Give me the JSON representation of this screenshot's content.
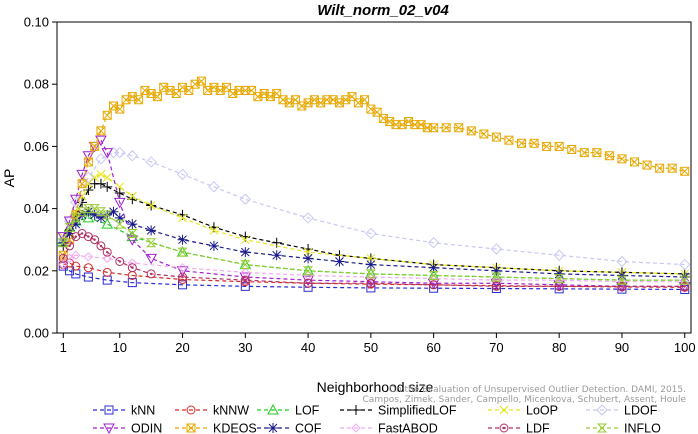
{
  "chart_data": {
    "type": "line",
    "title": "Wilt_norm_02_v04",
    "xlabel": "Neighborhood size",
    "ylabel": "AP",
    "xlim": [
      0,
      101
    ],
    "ylim": [
      0.0,
      0.1
    ],
    "x_ticks": [
      1,
      10,
      20,
      30,
      40,
      50,
      60,
      70,
      80,
      90,
      100
    ],
    "y_ticks": [
      0.0,
      0.02,
      0.04,
      0.06,
      0.08,
      0.1
    ],
    "y_tick_labels": [
      "0.00",
      "0.02",
      "0.04",
      "0.06",
      "0.08",
      "0.10"
    ],
    "grid": false,
    "legend_position": "bottom",
    "watermark": [
      "Campos, Zimek, Sander, Campello, Micenkova, Schubert, Assent, Houle",
      "On the Evaluation of Unsupervised Outlier Detection. DAMI, 2015."
    ],
    "series": [
      {
        "name": "kNN",
        "color": "#2b2bd6",
        "marker": "square",
        "x": [
          1,
          2,
          3,
          5,
          8,
          12,
          20,
          30,
          40,
          50,
          60,
          70,
          80,
          90,
          100
        ],
        "values": [
          0.0215,
          0.02,
          0.019,
          0.018,
          0.017,
          0.0162,
          0.0155,
          0.015,
          0.0147,
          0.0145,
          0.0144,
          0.0143,
          0.0142,
          0.0141,
          0.014
        ]
      },
      {
        "name": "kNNW",
        "color": "#d62b2b",
        "marker": "circle",
        "x": [
          1,
          2,
          3,
          5,
          8,
          12,
          20,
          30,
          40,
          50,
          60,
          70,
          80,
          90,
          100
        ],
        "values": [
          0.022,
          0.0225,
          0.0215,
          0.021,
          0.0195,
          0.0185,
          0.0172,
          0.0165,
          0.016,
          0.0157,
          0.0155,
          0.0152,
          0.015,
          0.0148,
          0.0147
        ]
      },
      {
        "name": "LOF",
        "color": "#22cc22",
        "marker": "triangle-up",
        "x": [
          1,
          2,
          3,
          5,
          8,
          12,
          20,
          30,
          40,
          50,
          60,
          70,
          80,
          90,
          100
        ],
        "values": [
          0.03,
          0.034,
          0.036,
          0.037,
          0.035,
          0.031,
          0.026,
          0.022,
          0.02,
          0.019,
          0.0185,
          0.018,
          0.0175,
          0.017,
          0.017
        ]
      },
      {
        "name": "SimplifiedLOF",
        "color": "#000000",
        "marker": "plus",
        "x": [
          1,
          2,
          3,
          4,
          5,
          6,
          7,
          8,
          10,
          12,
          15,
          20,
          25,
          30,
          35,
          40,
          45,
          50,
          60,
          70,
          80,
          90,
          100
        ],
        "values": [
          0.028,
          0.033,
          0.038,
          0.042,
          0.046,
          0.048,
          0.048,
          0.047,
          0.045,
          0.043,
          0.041,
          0.038,
          0.034,
          0.031,
          0.029,
          0.027,
          0.025,
          0.024,
          0.022,
          0.021,
          0.02,
          0.0195,
          0.019
        ]
      },
      {
        "name": "LoOP",
        "color": "#e6e619",
        "marker": "x",
        "x": [
          1,
          2,
          3,
          4,
          5,
          6,
          7,
          8,
          10,
          12,
          15,
          20,
          25,
          30,
          40,
          50,
          60,
          70,
          80,
          90,
          100
        ],
        "values": [
          0.031,
          0.034,
          0.039,
          0.044,
          0.048,
          0.05,
          0.051,
          0.05,
          0.047,
          0.044,
          0.041,
          0.037,
          0.033,
          0.03,
          0.026,
          0.024,
          0.022,
          0.021,
          0.02,
          0.0195,
          0.019
        ]
      },
      {
        "name": "LDOF",
        "color": "#c8c8f4",
        "marker": "diamond",
        "x": [
          1,
          2,
          3,
          5,
          7,
          9,
          10,
          12,
          15,
          20,
          25,
          30,
          40,
          50,
          60,
          70,
          80,
          90,
          100
        ],
        "values": [
          0.03,
          0.036,
          0.042,
          0.05,
          0.056,
          0.058,
          0.058,
          0.057,
          0.055,
          0.051,
          0.047,
          0.043,
          0.037,
          0.032,
          0.029,
          0.027,
          0.025,
          0.023,
          0.022
        ]
      },
      {
        "name": "ODIN",
        "color": "#a020d0",
        "marker": "triangle-down",
        "x": [
          1,
          2,
          3,
          4,
          5,
          6,
          7,
          8,
          10,
          12,
          15,
          20,
          30,
          40,
          50,
          60,
          70,
          80,
          90,
          100
        ],
        "values": [
          0.031,
          0.036,
          0.043,
          0.051,
          0.057,
          0.06,
          0.062,
          0.058,
          0.042,
          0.03,
          0.024,
          0.02,
          0.018,
          0.017,
          0.0165,
          0.016,
          0.016,
          0.0155,
          0.015,
          0.015
        ]
      },
      {
        "name": "KDEOS",
        "color": "#e8a800",
        "marker": "square-x",
        "x": [
          1,
          2,
          3,
          4,
          5,
          6,
          7,
          8,
          9,
          10,
          11,
          12,
          13,
          14,
          15,
          16,
          17,
          18,
          19,
          20,
          21,
          22,
          23,
          24,
          25,
          26,
          27,
          28,
          29,
          30,
          31,
          32,
          33,
          34,
          35,
          36,
          37,
          38,
          39,
          40,
          41,
          42,
          43,
          44,
          45,
          46,
          47,
          48,
          49,
          50,
          51,
          52,
          53,
          54,
          55,
          56,
          57,
          58,
          59,
          60,
          62,
          64,
          66,
          68,
          70,
          72,
          74,
          76,
          78,
          80,
          82,
          84,
          86,
          88,
          90,
          92,
          94,
          96,
          98,
          100
        ],
        "values": [
          0.025,
          0.03,
          0.038,
          0.048,
          0.055,
          0.06,
          0.065,
          0.07,
          0.073,
          0.072,
          0.075,
          0.076,
          0.075,
          0.078,
          0.077,
          0.076,
          0.079,
          0.078,
          0.077,
          0.079,
          0.078,
          0.08,
          0.081,
          0.078,
          0.079,
          0.078,
          0.079,
          0.077,
          0.078,
          0.078,
          0.078,
          0.076,
          0.077,
          0.076,
          0.077,
          0.075,
          0.074,
          0.075,
          0.073,
          0.074,
          0.075,
          0.074,
          0.075,
          0.075,
          0.074,
          0.075,
          0.076,
          0.074,
          0.075,
          0.072,
          0.071,
          0.069,
          0.068,
          0.067,
          0.067,
          0.068,
          0.067,
          0.067,
          0.066,
          0.066,
          0.066,
          0.066,
          0.065,
          0.064,
          0.063,
          0.062,
          0.061,
          0.061,
          0.06,
          0.06,
          0.059,
          0.058,
          0.058,
          0.057,
          0.056,
          0.055,
          0.054,
          0.053,
          0.053,
          0.052
        ]
      },
      {
        "name": "COF",
        "color": "#1a1a8c",
        "marker": "asterisk",
        "x": [
          1,
          2,
          3,
          4,
          5,
          6,
          7,
          8,
          9,
          10,
          12,
          15,
          20,
          25,
          30,
          35,
          40,
          45,
          50,
          60,
          70,
          80,
          90,
          100
        ],
        "values": [
          0.029,
          0.032,
          0.035,
          0.038,
          0.039,
          0.038,
          0.037,
          0.038,
          0.039,
          0.037,
          0.035,
          0.033,
          0.03,
          0.028,
          0.026,
          0.025,
          0.024,
          0.023,
          0.022,
          0.021,
          0.02,
          0.019,
          0.0185,
          0.018
        ]
      },
      {
        "name": "FastABOD",
        "color": "#f2aaf2",
        "marker": "diamond-small",
        "x": [
          1,
          2,
          3,
          5,
          8,
          12,
          20,
          30,
          40,
          50,
          60,
          70,
          80,
          90,
          100
        ],
        "values": [
          0.022,
          0.024,
          0.025,
          0.0245,
          0.024,
          0.0225,
          0.021,
          0.0195,
          0.0185,
          0.018,
          0.0175,
          0.017,
          0.017,
          0.0165,
          0.0165
        ]
      },
      {
        "name": "LDF",
        "color": "#b03060",
        "marker": "circle-dot",
        "x": [
          1,
          2,
          3,
          4,
          5,
          6,
          7,
          8,
          10,
          12,
          15,
          20,
          30,
          40,
          50,
          60,
          70,
          80,
          90,
          100
        ],
        "values": [
          0.024,
          0.028,
          0.031,
          0.032,
          0.031,
          0.03,
          0.028,
          0.026,
          0.023,
          0.021,
          0.019,
          0.018,
          0.017,
          0.016,
          0.016,
          0.0155,
          0.015,
          0.015,
          0.015,
          0.015
        ]
      },
      {
        "name": "INFLO",
        "color": "#99cc33",
        "marker": "hourglass",
        "x": [
          1,
          2,
          3,
          4,
          5,
          6,
          7,
          8,
          10,
          12,
          15,
          20,
          30,
          40,
          50,
          60,
          70,
          80,
          90,
          100
        ],
        "values": [
          0.029,
          0.034,
          0.037,
          0.039,
          0.04,
          0.04,
          0.039,
          0.038,
          0.035,
          0.032,
          0.029,
          0.026,
          0.022,
          0.02,
          0.019,
          0.0185,
          0.018,
          0.0175,
          0.017,
          0.017
        ]
      }
    ]
  }
}
